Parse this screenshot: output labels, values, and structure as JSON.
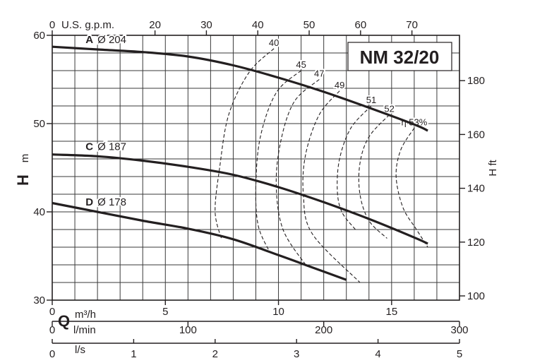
{
  "chart_data": {
    "type": "line",
    "title": "NM 32/20",
    "x_primary": {
      "label": "m³/h",
      "range": [
        0,
        18
      ],
      "ticks": [
        0,
        5,
        10,
        15
      ]
    },
    "x_top": {
      "label": "U.S. g.p.m.",
      "ticks": [
        "0",
        "20",
        "30",
        "40",
        "50",
        "60",
        "70"
      ]
    },
    "x_lmin": {
      "label": "l/min",
      "ticks": [
        "0",
        "100",
        "200",
        "300"
      ]
    },
    "x_ls": {
      "label": "l/s",
      "ticks": [
        "0",
        "1",
        "2",
        "3",
        "4",
        "5"
      ]
    },
    "q_symbol": "Q",
    "y_left": {
      "symbol": "H",
      "unit": "m",
      "range": [
        30,
        60
      ],
      "ticks": [
        30,
        40,
        50,
        60
      ]
    },
    "y_right": {
      "label": "H ft",
      "ticks": [
        100,
        120,
        140,
        160,
        180
      ]
    },
    "grid": true,
    "series": [
      {
        "name": "A",
        "diameter_label": "Ø 204",
        "x": [
          0,
          2,
          4,
          6,
          8,
          10,
          12,
          14,
          16,
          16.6
        ],
        "y": [
          58.7,
          58.4,
          58.1,
          57.6,
          56.6,
          55.2,
          53.6,
          51.8,
          49.9,
          49.2
        ]
      },
      {
        "name": "C",
        "diameter_label": "Ø 187",
        "x": [
          0,
          2,
          4,
          6,
          8,
          10,
          12,
          14,
          16,
          16.6
        ],
        "y": [
          46.5,
          46.3,
          45.8,
          45.1,
          44.2,
          42.8,
          41.1,
          39.2,
          37.1,
          36.4
        ]
      },
      {
        "name": "D",
        "diameter_label": "Ø 178",
        "x": [
          0,
          2,
          4,
          6,
          8,
          10,
          11.5,
          13
        ],
        "y": [
          41.0,
          40.0,
          39.0,
          38.1,
          36.9,
          35.1,
          33.7,
          32.3
        ]
      }
    ],
    "efficiency_prefix": "η",
    "efficiency_curves": [
      {
        "label": "40",
        "x": [
          9.8,
          8.7,
          7.8,
          7.4,
          7.2,
          7.5
        ],
        "y": [
          58.5,
          55.8,
          51.0,
          45.0,
          40.0,
          36.8
        ]
      },
      {
        "label": "45",
        "x": [
          11.0,
          9.9,
          9.2,
          9.0,
          9.1,
          9.6
        ],
        "y": [
          56.0,
          53.5,
          48.5,
          43.0,
          38.5,
          35.5
        ]
      },
      {
        "label": "47",
        "x": [
          11.8,
          10.7,
          10.1,
          9.9,
          10.2,
          11.2
        ],
        "y": [
          55.0,
          52.5,
          48.0,
          43.0,
          38.0,
          34.0
        ]
      },
      {
        "label": "49",
        "x": [
          12.7,
          11.8,
          11.2,
          11.1,
          11.5,
          13.6
        ],
        "y": [
          53.7,
          51.0,
          46.5,
          42.0,
          37.5,
          32.0
        ]
      },
      {
        "label": "51",
        "x": [
          14.1,
          13.2,
          12.7,
          12.6,
          12.8,
          13.4
        ],
        "y": [
          52.0,
          49.5,
          46.0,
          42.5,
          40.0,
          38.0
        ]
      },
      {
        "label": "52",
        "x": [
          14.9,
          14.0,
          13.6,
          13.6,
          14.0,
          14.8
        ],
        "y": [
          51.0,
          48.5,
          45.5,
          42.0,
          39.0,
          37.0
        ]
      },
      {
        "label": "53%",
        "x": [
          16.0,
          15.4,
          15.2,
          15.5,
          16.1,
          16.6
        ],
        "y": [
          49.5,
          47.0,
          44.0,
          40.5,
          38.0,
          36.0
        ]
      }
    ]
  }
}
